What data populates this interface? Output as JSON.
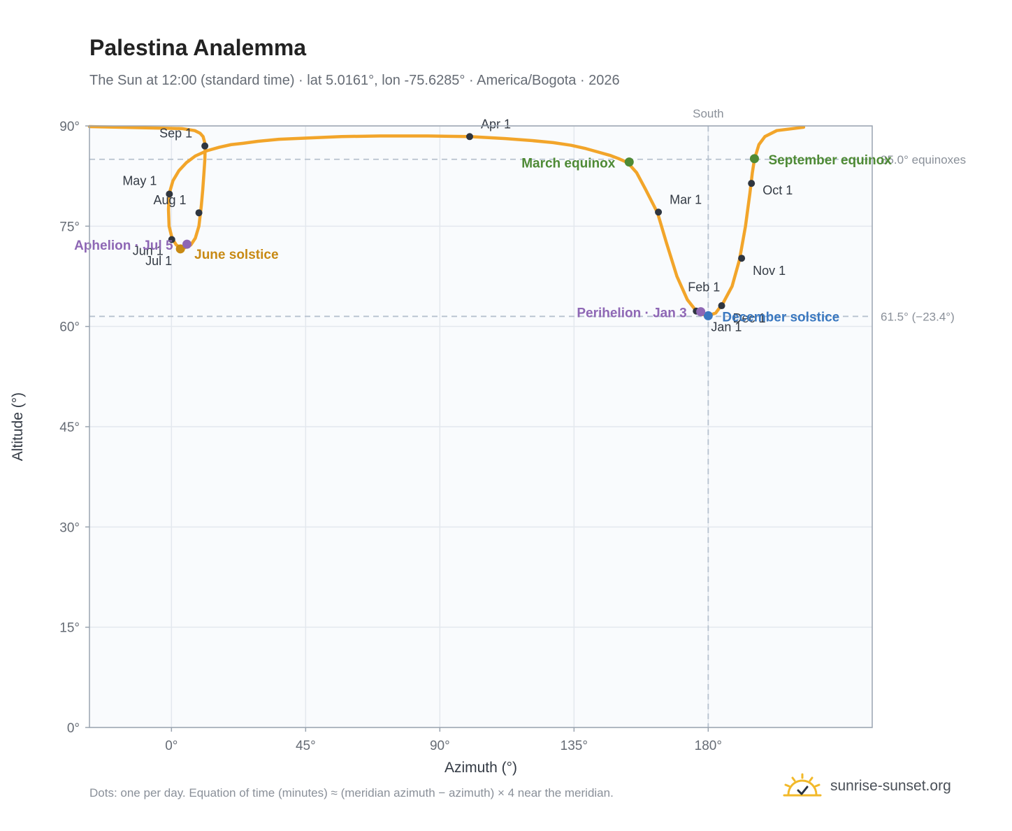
{
  "header": {
    "title": "Palestina Analemma",
    "subtitle": "The Sun at 12:00 (standard time) · lat 5.0161°, lon -75.6285° · America/Bogota · 2026"
  },
  "footer": {
    "note": "Dots: one per day. Equation of time (minutes) ≈ (meridian azimuth − azimuth) × 4 near the meridian.",
    "brand": "sunrise-sunset.org"
  },
  "colors": {
    "path": "#f2a52a",
    "month_marker": "#2f3640",
    "equinox": "#4e8a35",
    "june_solstice": "#c88a14",
    "december_solstice": "#3a78c0",
    "apsis": "#8e67b5",
    "plot_background": "#f9fbfd",
    "grid": "#e3e8ee",
    "reference_line": "#b7c2cf"
  },
  "chart_data": {
    "type": "scatter",
    "xlabel": "Azimuth (°)",
    "ylabel": "Altitude (°)",
    "xlim": [
      -27.5,
      235
    ],
    "ylim": [
      0,
      90
    ],
    "x_ticks": [
      0,
      45,
      90,
      135,
      180
    ],
    "x_tick_labels": [
      "0°",
      "45°",
      "90°",
      "135°",
      "180°"
    ],
    "y_ticks": [
      0,
      15,
      30,
      45,
      60,
      75,
      90
    ],
    "y_tick_labels": [
      "0°",
      "15°",
      "30°",
      "45°",
      "60°",
      "75°",
      "90°"
    ],
    "grid": true,
    "vertical_reference": {
      "x": 180,
      "label": "South"
    },
    "horizontal_references": [
      {
        "y": 85.0,
        "label": "85.0° equinoxes"
      },
      {
        "y": 61.5,
        "label": "61.5° (−23.4°)"
      }
    ],
    "series": [
      {
        "role": "daily-path",
        "segments": [
          [
            [
              -27.5,
              89.9
            ],
            [
              3.5,
              89.6
            ],
            [
              7.8,
              89.3
            ],
            [
              9.6,
              88.9
            ],
            [
              10.6,
              88.4
            ],
            [
              11.1,
              87.6
            ],
            [
              11.3,
              86.6
            ],
            [
              11.2,
              85.0
            ],
            [
              10.9,
              83.0
            ],
            [
              10.5,
              80.5
            ],
            [
              10.0,
              78.0
            ],
            [
              9.2,
              75.0
            ],
            [
              8.0,
              73.2
            ],
            [
              6.5,
              72.2
            ],
            [
              5.2,
              71.9
            ],
            [
              3.5,
              71.6
            ],
            [
              1.6,
              72.2
            ],
            [
              0.2,
              73.2
            ],
            [
              -0.8,
              75.0
            ],
            [
              -1.0,
              77.5
            ],
            [
              -0.8,
              79.8
            ],
            [
              0.5,
              81.8
            ],
            [
              2.5,
              83.3
            ],
            [
              5.0,
              84.5
            ],
            [
              8.0,
              85.5
            ],
            [
              12.0,
              86.3
            ],
            [
              16.0,
              86.8
            ],
            [
              20.0,
              87.2
            ],
            [
              24.0,
              87.4
            ],
            [
              29.0,
              87.7
            ],
            [
              36.0,
              88.0
            ],
            [
              46.0,
              88.2
            ],
            [
              57.0,
              88.4
            ],
            [
              70.0,
              88.5
            ],
            [
              86.0,
              88.5
            ],
            [
              100.0,
              88.4
            ],
            [
              112.0,
              88.1
            ],
            [
              121.0,
              87.8
            ],
            [
              128.0,
              87.5
            ],
            [
              134.0,
              87.1
            ],
            [
              139.0,
              86.6
            ],
            [
              143.0,
              86.1
            ],
            [
              147.0,
              85.6
            ],
            [
              150.0,
              85.1
            ],
            [
              153.0,
              84.5
            ],
            [
              156.0,
              83.0
            ],
            [
              159.0,
              80.5
            ],
            [
              163.0,
              77.0
            ],
            [
              166.0,
              72.5
            ],
            [
              169.5,
              67.5
            ],
            [
              173.0,
              64.0
            ],
            [
              176.0,
              62.3
            ],
            [
              178.0,
              61.8
            ],
            [
              180.0,
              61.6
            ],
            [
              182.5,
              62.0
            ],
            [
              185.0,
              63.5
            ],
            [
              188.0,
              66.0
            ],
            [
              190.5,
              70.0
            ],
            [
              192.5,
              75.0
            ],
            [
              194.0,
              80.0
            ],
            [
              194.8,
              83.0
            ],
            [
              195.5,
              85.0
            ],
            [
              197.0,
              87.2
            ],
            [
              199.0,
              88.4
            ],
            [
              203.0,
              89.3
            ],
            [
              212.0,
              89.8
            ]
          ]
        ]
      },
      {
        "role": "month-markers",
        "points": [
          {
            "label": "Jan 1",
            "x": 180.0,
            "y": 61.6
          },
          {
            "label": "Feb 1",
            "x": 176.0,
            "y": 62.3
          },
          {
            "label": "Mar 1",
            "x": 163.3,
            "y": 77.1
          },
          {
            "label": "Apr 1",
            "x": 100.0,
            "y": 88.4
          },
          {
            "label": "May 1",
            "x": -0.7,
            "y": 79.8
          },
          {
            "label": "Jun 1",
            "x": 0.1,
            "y": 73.0
          },
          {
            "label": "Jul 1",
            "x": 3.0,
            "y": 71.7
          },
          {
            "label": "Aug 1",
            "x": 9.2,
            "y": 77.0
          },
          {
            "label": "Sep 1",
            "x": 11.2,
            "y": 87.0
          },
          {
            "label": "Oct 1",
            "x": 194.5,
            "y": 81.4
          },
          {
            "label": "Nov 1",
            "x": 191.2,
            "y": 70.2
          },
          {
            "label": "Dec 1",
            "x": 184.5,
            "y": 63.1
          }
        ]
      },
      {
        "role": "events",
        "points": [
          {
            "label": "March equinox",
            "x": 153.5,
            "y": 84.6
          },
          {
            "label": "September equinox",
            "x": 195.5,
            "y": 85.1
          },
          {
            "label": "June solstice",
            "x": 3.0,
            "y": 71.6
          },
          {
            "label": "December solstice",
            "x": 180.0,
            "y": 61.6
          },
          {
            "label": "Aphelion · Jul 5",
            "x": 5.2,
            "y": 72.3
          },
          {
            "label": "Perihelion · Jan 3",
            "x": 177.5,
            "y": 62.2
          }
        ]
      }
    ]
  }
}
